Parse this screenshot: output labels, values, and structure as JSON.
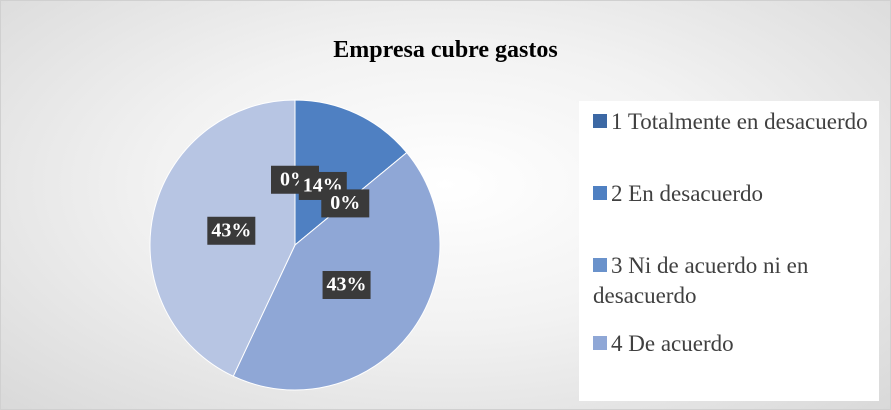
{
  "chart_data": {
    "type": "pie",
    "title": "Empresa cubre gastos",
    "categories": [
      "1 Totalmente en desacuerdo",
      "2 En desacuerdo",
      "3 Ni de acuerdo ni en desacuerdo",
      "4 De acuerdo",
      null
    ],
    "values": [
      0,
      14,
      0,
      43,
      43
    ],
    "value_labels": [
      "0%",
      "14%",
      "0%",
      "43%",
      "43%"
    ],
    "colors": [
      "#3c68a4",
      "#4f80c2",
      "#6a92cb",
      "#8fa7d6",
      "#b7c5e3"
    ],
    "legend": "right"
  }
}
